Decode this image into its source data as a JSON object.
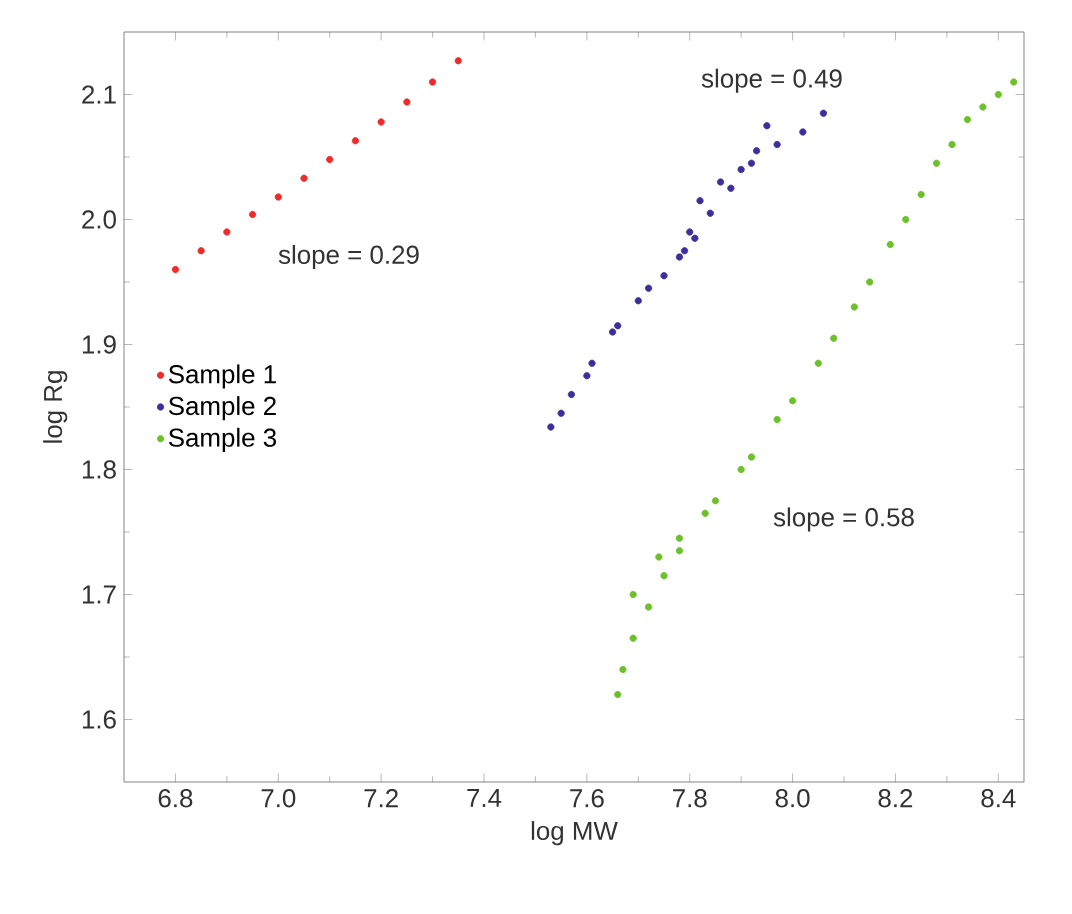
{
  "chart_data": {
    "type": "scatter",
    "xlabel": "log MW",
    "ylabel": "log Rg",
    "xlim": [
      6.7,
      8.45
    ],
    "ylim": [
      1.55,
      2.15
    ],
    "xticks": [
      6.8,
      {
        "value": 7,
        "label": "7.0"
      },
      7.2,
      7.4,
      7.6,
      7.8,
      {
        "value": 8,
        "label": "8.0"
      },
      8.2,
      8.4
    ],
    "yticks": [
      1.6,
      1.7,
      1.8,
      1.9,
      {
        "value": 2,
        "label": "2.0"
      },
      2.1
    ],
    "legend": "left",
    "grid": false,
    "series": [
      {
        "name": "Sample 1",
        "color": "#ee2a2a",
        "x": [
          6.8,
          6.85,
          6.9,
          6.95,
          7.0,
          7.05,
          7.1,
          7.15,
          7.2,
          7.25,
          7.3,
          7.35
        ],
        "values": [
          1.96,
          1.975,
          1.99,
          2.004,
          2.018,
          2.033,
          2.048,
          2.063,
          2.078,
          2.094,
          2.11,
          2.127
        ]
      },
      {
        "name": "Sample 2",
        "color": "#3b2f9c",
        "x": [
          7.53,
          7.57,
          7.61,
          7.65,
          7.7,
          7.75,
          7.79,
          7.8,
          7.82,
          7.86,
          7.9,
          7.93,
          7.95,
          7.55,
          7.6,
          7.66,
          7.72,
          7.78,
          7.81,
          7.84,
          7.88,
          7.92,
          7.97,
          8.02,
          8.06
        ],
        "values": [
          1.834,
          1.86,
          1.885,
          1.91,
          1.935,
          1.955,
          1.975,
          1.99,
          2.015,
          2.03,
          2.04,
          2.055,
          2.075,
          1.845,
          1.875,
          1.915,
          1.945,
          1.97,
          1.985,
          2.005,
          2.025,
          2.045,
          2.06,
          2.07,
          2.085
        ]
      },
      {
        "name": "Sample 3",
        "color": "#6cc02a",
        "x": [
          7.69,
          7.74,
          7.78,
          7.85,
          7.92,
          8.0,
          8.08,
          8.15,
          8.22,
          8.28,
          8.34,
          8.4,
          8.43,
          7.66,
          7.67,
          7.69,
          7.72,
          7.75,
          7.78,
          7.83,
          7.9,
          7.97,
          8.05,
          8.12,
          8.19,
          8.25,
          8.31,
          8.37
        ],
        "values": [
          1.7,
          1.73,
          1.745,
          1.775,
          1.81,
          1.855,
          1.905,
          1.95,
          2.0,
          2.045,
          2.08,
          2.1,
          2.11,
          1.62,
          1.64,
          1.665,
          1.69,
          1.715,
          1.735,
          1.765,
          1.8,
          1.84,
          1.885,
          1.93,
          1.98,
          2.02,
          2.06,
          2.09
        ]
      }
    ],
    "annotations": [
      "slope = 0.29",
      "slope = 0.49",
      "slope = 0.58"
    ]
  }
}
